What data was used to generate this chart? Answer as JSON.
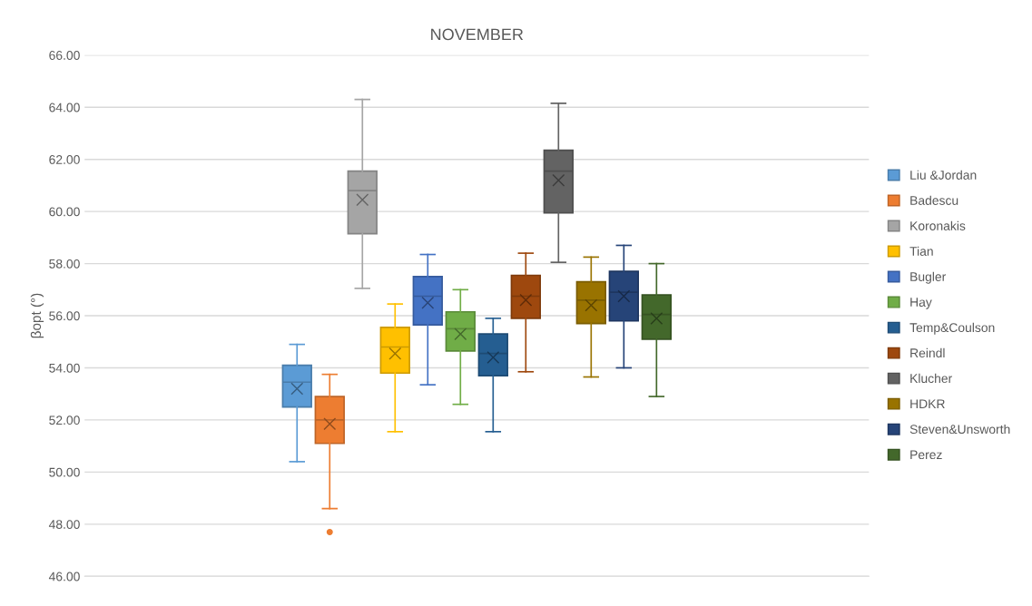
{
  "chart_data": {
    "type": "box",
    "title": "NOVEMBER",
    "ylabel": "βopt (°)",
    "categories": [
      null
    ],
    "ylim": [
      46,
      66
    ],
    "yticks": [
      {
        "value": 46,
        "label": "46.00"
      },
      {
        "value": 48,
        "label": "48.00"
      },
      {
        "value": 50,
        "label": "50.00"
      },
      {
        "value": 52,
        "label": "52.00"
      },
      {
        "value": 54,
        "label": "54.00"
      },
      {
        "value": 56,
        "label": "56.00"
      },
      {
        "value": 58,
        "label": "58.00"
      },
      {
        "value": 60,
        "label": "60.00"
      },
      {
        "value": 62,
        "label": "62.00"
      },
      {
        "value": 64,
        "label": "64.00"
      },
      {
        "value": 66,
        "label": "66.00"
      }
    ],
    "grid": "y",
    "legend": "right",
    "marker": "cross",
    "series": [
      {
        "name": "Liu &Jordan",
        "color": "#5b9bd5",
        "boxes": [
          {
            "low": 50.4,
            "q1": 52.5,
            "median": 53.45,
            "q3": 54.1,
            "high": 54.9,
            "mean": 53.2
          }
        ]
      },
      {
        "name": "Badescu",
        "color": "#ed7d31",
        "boxes": [
          {
            "low": 48.6,
            "q1": 51.1,
            "median": 52.0,
            "q3": 52.9,
            "high": 53.75,
            "mean": 51.85,
            "outliers": [
              47.7
            ]
          }
        ]
      },
      {
        "name": "Koronakis",
        "color": "#a5a5a5",
        "boxes": [
          {
            "low": 57.05,
            "q1": 59.15,
            "median": 60.8,
            "q3": 61.55,
            "high": 64.3,
            "mean": 60.45
          }
        ]
      },
      {
        "name": "Tian",
        "color": "#ffc000",
        "boxes": [
          {
            "low": 51.55,
            "q1": 53.8,
            "median": 54.8,
            "q3": 55.55,
            "high": 56.45,
            "mean": 54.55
          }
        ]
      },
      {
        "name": "Bugler",
        "color": "#4472c4",
        "boxes": [
          {
            "low": 53.35,
            "q1": 55.65,
            "median": 56.75,
            "q3": 57.5,
            "high": 58.35,
            "mean": 56.5
          }
        ]
      },
      {
        "name": "Hay",
        "color": "#70ad47",
        "boxes": [
          {
            "low": 52.6,
            "q1": 54.65,
            "median": 55.5,
            "q3": 56.15,
            "high": 57.0,
            "mean": 55.3
          }
        ]
      },
      {
        "name": "Temp&Coulson",
        "color": "#255e91",
        "boxes": [
          {
            "low": 51.55,
            "q1": 53.7,
            "median": 54.55,
            "q3": 55.3,
            "high": 55.9,
            "mean": 54.4
          }
        ]
      },
      {
        "name": "Reindl",
        "color": "#9e480e",
        "boxes": [
          {
            "low": 53.85,
            "q1": 55.9,
            "median": 56.75,
            "q3": 57.55,
            "high": 58.4,
            "mean": 56.6
          }
        ]
      },
      {
        "name": "Klucher",
        "color": "#636363",
        "boxes": [
          {
            "low": 58.05,
            "q1": 59.95,
            "median": 61.55,
            "q3": 62.35,
            "high": 64.15,
            "mean": 61.2
          }
        ]
      },
      {
        "name": "HDKR",
        "color": "#997300",
        "boxes": [
          {
            "low": 53.65,
            "q1": 55.7,
            "median": 56.6,
            "q3": 57.3,
            "high": 58.25,
            "mean": 56.4
          }
        ]
      },
      {
        "name": "Steven&Unsworth",
        "color": "#264478",
        "boxes": [
          {
            "low": 54.0,
            "q1": 55.8,
            "median": 56.9,
            "q3": 57.7,
            "high": 58.7,
            "mean": 56.75
          }
        ]
      },
      {
        "name": "Perez",
        "color": "#43682b",
        "boxes": [
          {
            "low": 52.9,
            "q1": 55.1,
            "median": 56.05,
            "q3": 56.8,
            "high": 58.0,
            "mean": 55.9
          }
        ]
      }
    ]
  }
}
